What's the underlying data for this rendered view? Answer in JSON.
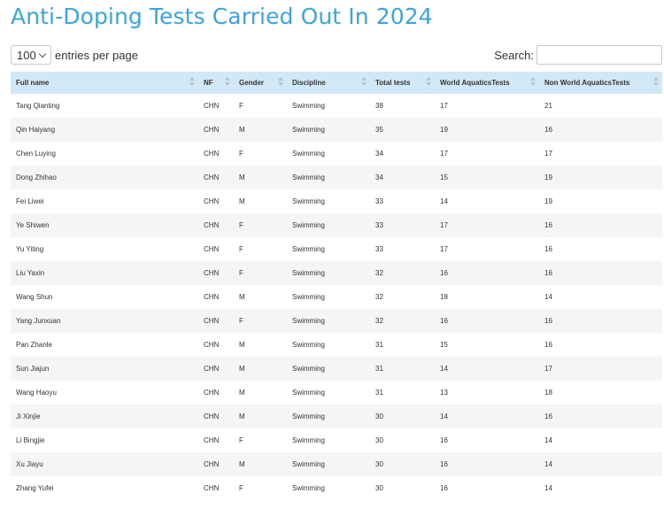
{
  "title": "Anti-Doping Tests Carried Out In 2024",
  "length": {
    "selected": "100",
    "label": "entries per page"
  },
  "search": {
    "label": "Search:",
    "value": ""
  },
  "table": {
    "columns": [
      "Full name",
      "NF",
      "Gender",
      "Discipline",
      "Total tests",
      "World AquaticsTests",
      "Non World AquaticsTests"
    ],
    "rows": [
      [
        "Tang Qianting",
        "CHN",
        "F",
        "Swimming",
        "38",
        "17",
        "21"
      ],
      [
        "Qin Haiyang",
        "CHN",
        "M",
        "Swimming",
        "35",
        "19",
        "16"
      ],
      [
        "Chen Luying",
        "CHN",
        "F",
        "Swimming",
        "34",
        "17",
        "17"
      ],
      [
        "Dong Zhihao",
        "CHN",
        "M",
        "Swimming",
        "34",
        "15",
        "19"
      ],
      [
        "Fei Liwei",
        "CHN",
        "M",
        "Swimming",
        "33",
        "14",
        "19"
      ],
      [
        "Ye Shiwen",
        "CHN",
        "F",
        "Swimming",
        "33",
        "17",
        "16"
      ],
      [
        "Yu Yiting",
        "CHN",
        "F",
        "Swimming",
        "33",
        "17",
        "16"
      ],
      [
        "Liu Yaxin",
        "CHN",
        "F",
        "Swimming",
        "32",
        "16",
        "16"
      ],
      [
        "Wang Shun",
        "CHN",
        "M",
        "Swimming",
        "32",
        "18",
        "14"
      ],
      [
        "Yang Junxuan",
        "CHN",
        "F",
        "Swimming",
        "32",
        "16",
        "16"
      ],
      [
        "Pan Zhanle",
        "CHN",
        "M",
        "Swimming",
        "31",
        "15",
        "16"
      ],
      [
        "Sun Jiajun",
        "CHN",
        "M",
        "Swimming",
        "31",
        "14",
        "17"
      ],
      [
        "Wang Haoyu",
        "CHN",
        "M",
        "Swimming",
        "31",
        "13",
        "18"
      ],
      [
        "Ji Xinjie",
        "CHN",
        "M",
        "Swimming",
        "30",
        "14",
        "16"
      ],
      [
        "Li Bingjie",
        "CHN",
        "F",
        "Swimming",
        "30",
        "16",
        "14"
      ],
      [
        "Xu Jiayu",
        "CHN",
        "M",
        "Swimming",
        "30",
        "16",
        "14"
      ],
      [
        "Zhang Yufei",
        "CHN",
        "F",
        "Swimming",
        "30",
        "16",
        "14"
      ]
    ]
  }
}
